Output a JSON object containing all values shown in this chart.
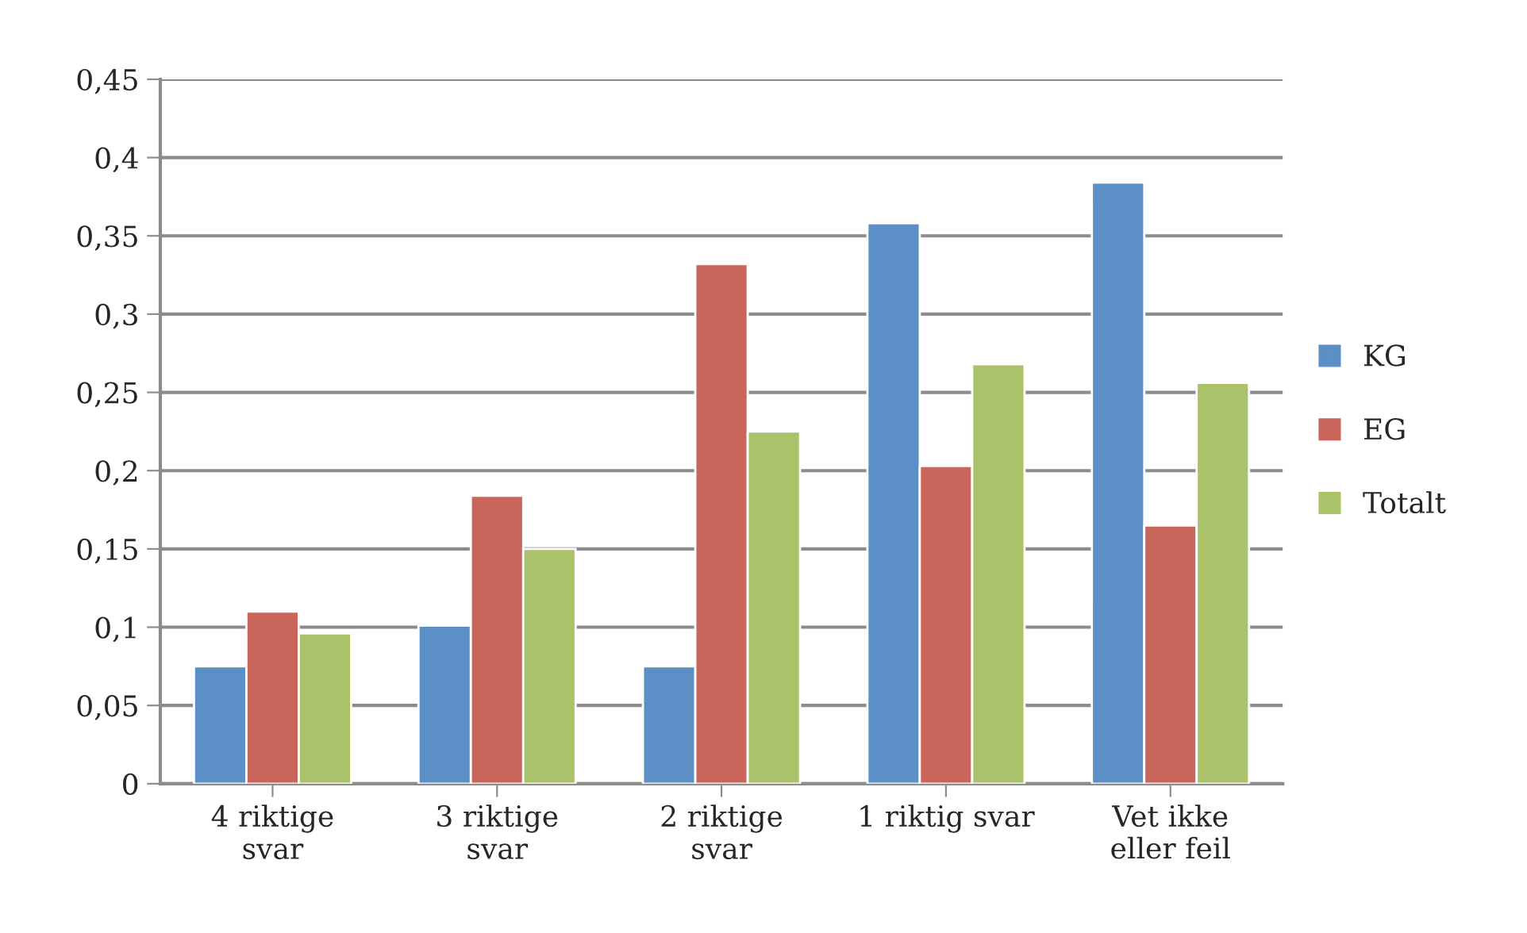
{
  "chart_data": {
    "type": "bar",
    "categories": [
      "4 riktige\nsvar",
      "3 riktige\nsvar",
      "2 riktige\nsvar",
      "1 riktig svar",
      "Vet ikke\neller feil"
    ],
    "series": [
      {
        "name": "KG",
        "color": "#5b8fc6",
        "values": [
          0.075,
          0.101,
          0.075,
          0.358,
          0.384
        ]
      },
      {
        "name": "EG",
        "color": "#c9655b",
        "values": [
          0.11,
          0.184,
          0.332,
          0.203,
          0.165
        ]
      },
      {
        "name": "Totalt",
        "color": "#aac26a",
        "values": [
          0.096,
          0.15,
          0.225,
          0.268,
          0.256
        ]
      }
    ],
    "ylim": [
      0,
      0.45
    ],
    "yticks": [
      {
        "value": 0,
        "label": "0"
      },
      {
        "value": 0.05,
        "label": "0,05"
      },
      {
        "value": 0.1,
        "label": "0,1"
      },
      {
        "value": 0.15,
        "label": "0,15"
      },
      {
        "value": 0.2,
        "label": "0,2"
      },
      {
        "value": 0.25,
        "label": "0,25"
      },
      {
        "value": 0.3,
        "label": "0,3"
      },
      {
        "value": 0.35,
        "label": "0,35"
      },
      {
        "value": 0.4,
        "label": "0,4"
      },
      {
        "value": 0.45,
        "label": "0,45"
      }
    ],
    "grid": "y",
    "legend": "right"
  }
}
